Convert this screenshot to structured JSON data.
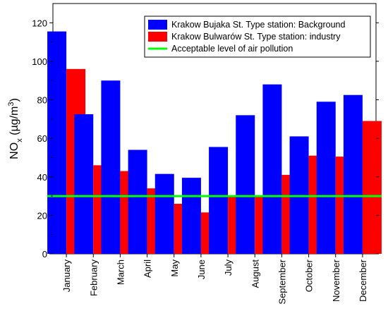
{
  "chart_data": {
    "type": "bar",
    "ylabel": "NO",
    "ylabel_sub": "x",
    "ylabel_unit": " (µg/m",
    "ylabel_sup": "3",
    "ylabel_close": ")",
    "ylim": [
      0,
      130
    ],
    "yticks": [
      0,
      20,
      40,
      60,
      80,
      100,
      120
    ],
    "categories": [
      "January",
      "February",
      "March",
      "April",
      "May",
      "June",
      "July",
      "August",
      "September",
      "October",
      "November",
      "December"
    ],
    "series": [
      {
        "name": "Krakow Bujaka St. Type station: Background",
        "color": "#0000ff",
        "values": [
          115.5,
          72.5,
          90,
          54,
          41.5,
          39.5,
          55.5,
          72,
          88,
          61,
          79,
          82.5
        ]
      },
      {
        "name": "Krakow Bulwarów St.  Type station: industry",
        "color": "#ff0000",
        "values": [
          96,
          46,
          43,
          34,
          26,
          21.5,
          29.5,
          29.5,
          41,
          51,
          50.5,
          69
        ]
      }
    ],
    "reference_line": {
      "name": "Acceptable level of air pollution",
      "value": 30,
      "color": "#00ff00"
    },
    "legend_position": "top-right",
    "grid": false
  }
}
